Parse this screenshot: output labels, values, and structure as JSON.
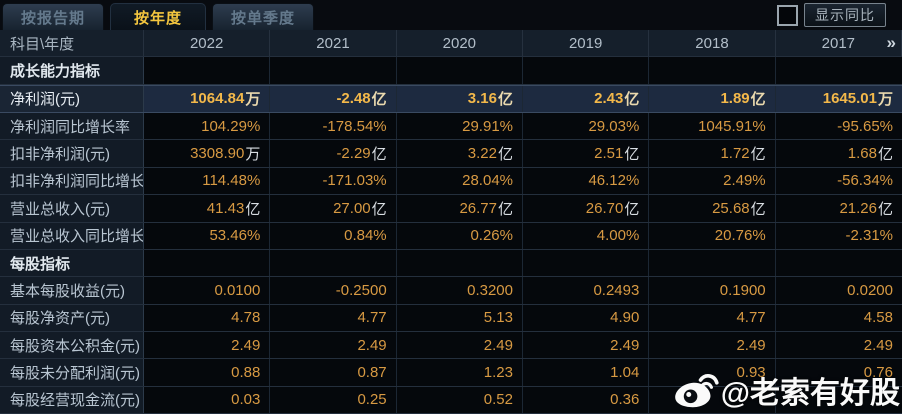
{
  "tabs": [
    {
      "label": "按报告期",
      "active": false
    },
    {
      "label": "按年度",
      "active": true
    },
    {
      "label": "按单季度",
      "active": false
    }
  ],
  "controls": {
    "show_yoy_label": "显示同比",
    "checkbox_checked": false
  },
  "table": {
    "corner_label": "科目\\年度",
    "years": [
      "2022",
      "2021",
      "2020",
      "2019",
      "2018",
      "2017"
    ],
    "more_icon": "»",
    "rows": [
      {
        "type": "section",
        "label": "成长能力指标"
      },
      {
        "type": "data",
        "highlight": true,
        "label": "净利润(元)",
        "values": [
          "1064.84万",
          "-2.48亿",
          "3.16亿",
          "2.43亿",
          "1.89亿",
          "1645.01万"
        ]
      },
      {
        "type": "data",
        "highlight": false,
        "label": "净利润同比增长率",
        "values": [
          "104.29%",
          "-178.54%",
          "29.91%",
          "29.03%",
          "1045.91%",
          "-95.65%"
        ]
      },
      {
        "type": "data",
        "highlight": false,
        "label": "扣非净利润(元)",
        "values": [
          "3308.90万",
          "-2.29亿",
          "3.22亿",
          "2.51亿",
          "1.72亿",
          "1.68亿"
        ]
      },
      {
        "type": "data",
        "highlight": false,
        "label": "扣非净利润同比增长率",
        "values": [
          "114.48%",
          "-171.03%",
          "28.04%",
          "46.12%",
          "2.49%",
          "-56.34%"
        ]
      },
      {
        "type": "data",
        "highlight": false,
        "label": "营业总收入(元)",
        "values": [
          "41.43亿",
          "27.00亿",
          "26.77亿",
          "26.70亿",
          "25.68亿",
          "21.26亿"
        ]
      },
      {
        "type": "data",
        "highlight": false,
        "label": "营业总收入同比增长率",
        "values": [
          "53.46%",
          "0.84%",
          "0.26%",
          "4.00%",
          "20.76%",
          "-2.31%"
        ]
      },
      {
        "type": "section",
        "label": "每股指标"
      },
      {
        "type": "data",
        "highlight": false,
        "label": "基本每股收益(元)",
        "values": [
          "0.0100",
          "-0.2500",
          "0.3200",
          "0.2493",
          "0.1900",
          "0.0200"
        ]
      },
      {
        "type": "data",
        "highlight": false,
        "label": "每股净资产(元)",
        "values": [
          "4.78",
          "4.77",
          "5.13",
          "4.90",
          "4.77",
          "4.58"
        ]
      },
      {
        "type": "data",
        "highlight": false,
        "label": "每股资本公积金(元)",
        "values": [
          "2.49",
          "2.49",
          "2.49",
          "2.49",
          "2.49",
          "2.49"
        ]
      },
      {
        "type": "data",
        "highlight": false,
        "label": "每股未分配利润(元)",
        "values": [
          "0.88",
          "0.87",
          "1.23",
          "1.04",
          "0.93",
          "0.76"
        ]
      },
      {
        "type": "data",
        "highlight": false,
        "label": "每股经营现金流(元)",
        "values": [
          "0.03",
          "0.25",
          "0.52",
          "0.36",
          "",
          ""
        ]
      }
    ]
  },
  "watermark": {
    "text": "@老索有好股",
    "icon": "weibo-icon"
  },
  "colors": {
    "accent_gold": "#f4c63f",
    "value_orange": "#d89a43",
    "highlight_row_bg": "#1d2a40",
    "label_col_bg": "#121b26",
    "data_cell_bg": "#05080c"
  }
}
